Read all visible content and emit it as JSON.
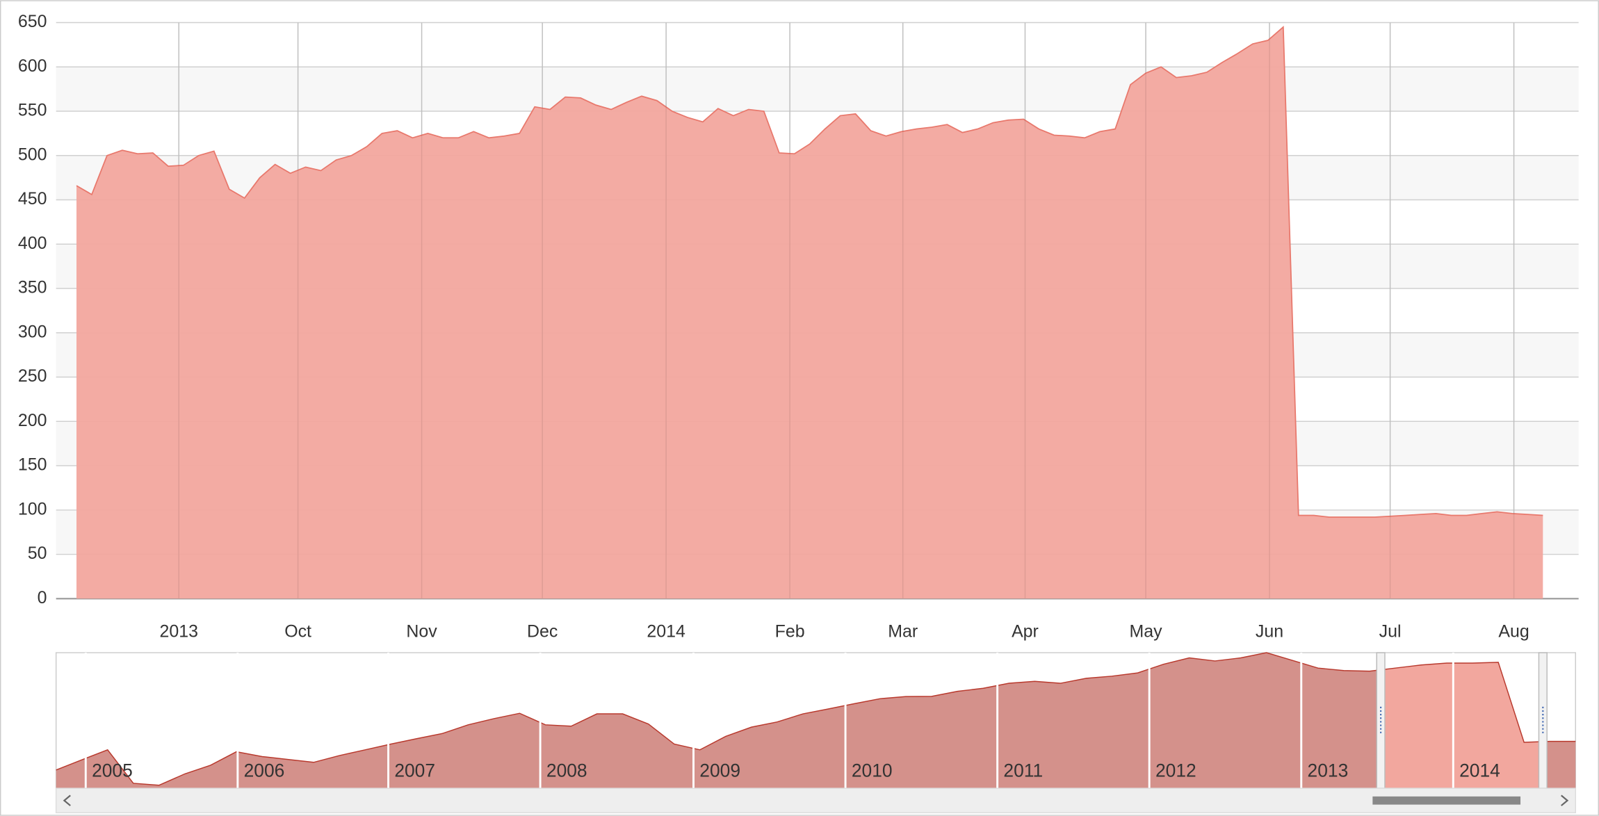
{
  "chart_data": [
    {
      "type": "area",
      "color": "#f2a79e",
      "line_color": "#e8786c",
      "values": [
        466,
        456,
        500,
        506,
        502,
        503,
        488,
        489,
        500,
        505,
        462,
        452,
        475,
        490,
        480,
        487,
        483,
        495,
        500,
        510,
        525,
        528,
        520,
        525,
        520,
        520,
        527,
        520,
        522,
        525,
        555,
        552,
        566,
        565,
        557,
        552,
        560,
        567,
        562,
        550,
        543,
        538,
        553,
        545,
        552,
        550,
        503,
        502,
        513,
        530,
        545,
        547,
        528,
        522,
        527,
        530,
        532,
        535,
        526,
        530,
        537,
        540,
        541,
        530,
        523,
        522,
        520,
        527,
        530,
        580,
        593,
        600,
        588,
        590,
        594,
        605,
        615,
        626,
        630,
        645,
        94,
        94,
        92,
        92,
        92,
        92,
        93,
        94,
        95,
        96,
        94,
        94,
        96,
        98,
        96,
        95,
        94
      ],
      "xticks": [
        {
          "value": 6.7,
          "label": "2013"
        },
        {
          "value": 14.5,
          "label": "Oct"
        },
        {
          "value": 22.6,
          "label": "Nov"
        },
        {
          "value": 30.5,
          "label": "Dec"
        },
        {
          "value": 38.6,
          "label": "2014"
        },
        {
          "value": 46.7,
          "label": "Feb"
        },
        {
          "value": 54.1,
          "label": "Mar"
        },
        {
          "value": 62.1,
          "label": "Apr"
        },
        {
          "value": 70.0,
          "label": "May"
        },
        {
          "value": 78.1,
          "label": "Jun"
        },
        {
          "value": 86.0,
          "label": "Jul"
        },
        {
          "value": 94.1,
          "label": "Aug"
        }
      ],
      "ylim": [
        0,
        650
      ],
      "yticks": [
        0,
        50,
        100,
        150,
        200,
        250,
        300,
        350,
        400,
        450,
        500,
        550,
        600,
        650
      ],
      "grid": true,
      "band_color": "#f7f7f7"
    },
    {
      "type": "area",
      "color": "#d4918b",
      "selected_color": "#f2a79e",
      "line_color": "#b8392d",
      "values": [
        95,
        148,
        200,
        26,
        16,
        75,
        120,
        190,
        165,
        150,
        135,
        170,
        200,
        230,
        258,
        285,
        330,
        362,
        390,
        330,
        323,
        387,
        387,
        334,
        230,
        200,
        270,
        318,
        345,
        387,
        413,
        440,
        466,
        477,
        478,
        504,
        520,
        546,
        556,
        546,
        572,
        583,
        600,
        645,
        678,
        662,
        678,
        705,
        665,
        625,
        612,
        609,
        625,
        641,
        651,
        651,
        655,
        239,
        244,
        244
      ],
      "xticks": [
        {
          "value": 1.15,
          "label": "2005"
        },
        {
          "value": 7.05,
          "label": "2006"
        },
        {
          "value": 12.9,
          "label": "2007"
        },
        {
          "value": 18.8,
          "label": "2008"
        },
        {
          "value": 24.75,
          "label": "2009"
        },
        {
          "value": 30.65,
          "label": "2010"
        },
        {
          "value": 36.55,
          "label": "2011"
        },
        {
          "value": 42.45,
          "label": "2012"
        },
        {
          "value": 48.35,
          "label": "2013"
        },
        {
          "value": 54.25,
          "label": "2014"
        }
      ],
      "ylim": [
        0,
        705
      ]
    }
  ]
}
